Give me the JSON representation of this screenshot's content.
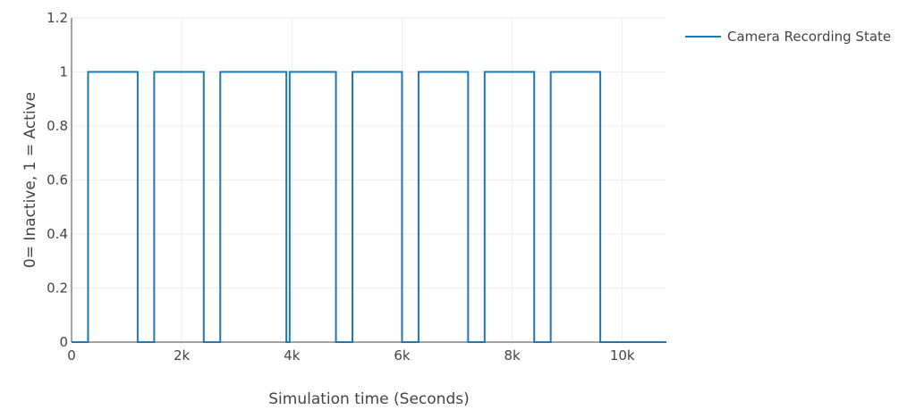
{
  "chart_data": {
    "type": "line",
    "line_shape": "step",
    "title": "",
    "xlabel": "Simulation time (Seconds)",
    "ylabel": "0= Inactive, 1 = Active",
    "xlim": [
      0,
      10800
    ],
    "ylim": [
      0,
      1.2
    ],
    "x_ticks": [
      0,
      2000,
      4000,
      6000,
      8000,
      10000
    ],
    "x_tick_labels": [
      "0",
      "2k",
      "4k",
      "6k",
      "8k",
      "10k"
    ],
    "y_ticks": [
      0,
      0.2,
      0.4,
      0.6,
      0.8,
      1,
      1.2
    ],
    "y_tick_labels": [
      "0",
      "0.2",
      "0.4",
      "0.6",
      "0.8",
      "1",
      "1.2"
    ],
    "grid": true,
    "legend_position": "top-right",
    "series": [
      {
        "name": "Camera Recording State",
        "color": "#1f77b4",
        "x": [
          0,
          300,
          300,
          1200,
          1200,
          1500,
          1500,
          2400,
          2400,
          2700,
          2700,
          3900,
          3900,
          3960,
          3960,
          4800,
          4800,
          5100,
          5100,
          6000,
          6000,
          6300,
          6300,
          7200,
          7200,
          7500,
          7500,
          8400,
          8400,
          8700,
          8700,
          9600,
          9600,
          10800
        ],
        "y": [
          0,
          0,
          1,
          1,
          0,
          0,
          1,
          1,
          0,
          0,
          1,
          1,
          0,
          0,
          1,
          1,
          0,
          0,
          1,
          1,
          0,
          0,
          1,
          1,
          0,
          0,
          1,
          1,
          0,
          0,
          1,
          1,
          0,
          0
        ]
      }
    ]
  }
}
